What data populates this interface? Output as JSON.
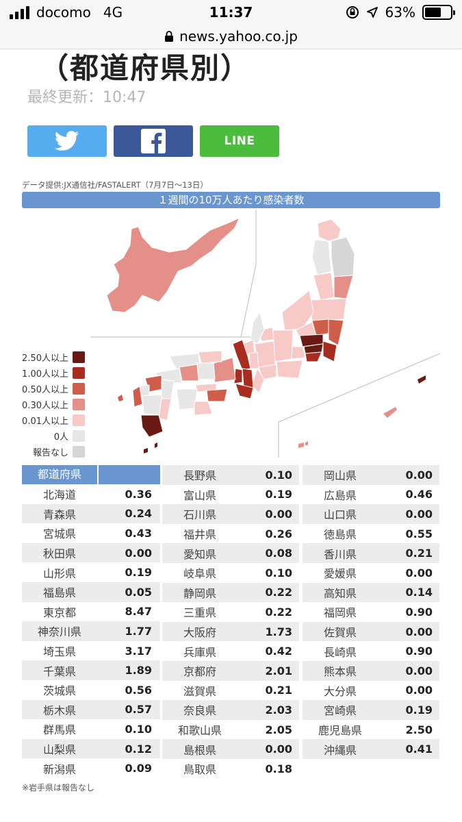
{
  "status_bar": {
    "carrier": "docomo",
    "network": "4G",
    "time": "11:37",
    "battery": "63%",
    "battery_level": 0.63
  },
  "url_bar": {
    "domain": "news.yahoo.co.jp"
  },
  "article": {
    "heading": "（都道府県別）",
    "updated": "最終更新：10:47"
  },
  "share": {
    "twitter_icon": "twitter-bird-icon",
    "facebook_icon": "facebook-f-icon",
    "line_label": "LINE"
  },
  "map": {
    "source": "データ提供:JX通信社/FASTALERT（7月7日〜13日）",
    "title": "１週間の10万人あたり感染者数",
    "legend": [
      {
        "label": "2.50人以上",
        "color": "#6b1a13"
      },
      {
        "label": "1.00人以上",
        "color": "#a82d20"
      },
      {
        "label": "0.50人以上",
        "color": "#cf5d4a"
      },
      {
        "label": "0.30人以上",
        "color": "#e58f89"
      },
      {
        "label": "0.01人以上",
        "color": "#f7cac7"
      },
      {
        "label": "0人",
        "color": "#e7e7e7"
      },
      {
        "label": "報告なし",
        "color": "#d6d6d6"
      }
    ]
  },
  "table": {
    "header": "都道府県",
    "col1": [
      {
        "name": "北海道",
        "value": "0.36"
      },
      {
        "name": "青森県",
        "value": "0.24"
      },
      {
        "name": "宮城県",
        "value": "0.43"
      },
      {
        "name": "秋田県",
        "value": "0.00"
      },
      {
        "name": "山形県",
        "value": "0.19"
      },
      {
        "name": "福島県",
        "value": "0.05"
      },
      {
        "name": "東京都",
        "value": "8.47"
      },
      {
        "name": "神奈川県",
        "value": "1.77"
      },
      {
        "name": "埼玉県",
        "value": "3.17"
      },
      {
        "name": "千葉県",
        "value": "1.89"
      },
      {
        "name": "茨城県",
        "value": "0.56"
      },
      {
        "name": "栃木県",
        "value": "0.57"
      },
      {
        "name": "群馬県",
        "value": "0.10"
      },
      {
        "name": "山梨県",
        "value": "0.12"
      },
      {
        "name": "新潟県",
        "value": "0.09"
      }
    ],
    "col2": [
      {
        "name": "長野県",
        "value": "0.10"
      },
      {
        "name": "富山県",
        "value": "0.19"
      },
      {
        "name": "石川県",
        "value": "0.00"
      },
      {
        "name": "福井県",
        "value": "0.26"
      },
      {
        "name": "愛知県",
        "value": "0.08"
      },
      {
        "name": "岐阜県",
        "value": "0.10"
      },
      {
        "name": "静岡県",
        "value": "0.22"
      },
      {
        "name": "三重県",
        "value": "0.22"
      },
      {
        "name": "大阪府",
        "value": "1.73"
      },
      {
        "name": "兵庫県",
        "value": "0.42"
      },
      {
        "name": "京都府",
        "value": "2.01"
      },
      {
        "name": "滋賀県",
        "value": "0.21"
      },
      {
        "name": "奈良県",
        "value": "2.03"
      },
      {
        "name": "和歌山県",
        "value": "2.05"
      },
      {
        "name": "島根県",
        "value": "0.00"
      },
      {
        "name": "鳥取県",
        "value": "0.18"
      }
    ],
    "col3": [
      {
        "name": "岡山県",
        "value": "0.00"
      },
      {
        "name": "広島県",
        "value": "0.46"
      },
      {
        "name": "山口県",
        "value": "0.00"
      },
      {
        "name": "徳島県",
        "value": "0.55"
      },
      {
        "name": "香川県",
        "value": "0.21"
      },
      {
        "name": "愛媛県",
        "value": "0.00"
      },
      {
        "name": "高知県",
        "value": "0.14"
      },
      {
        "name": "福岡県",
        "value": "0.90"
      },
      {
        "name": "佐賀県",
        "value": "0.00"
      },
      {
        "name": "長崎県",
        "value": "0.90"
      },
      {
        "name": "熊本県",
        "value": "0.00"
      },
      {
        "name": "大分県",
        "value": "0.00"
      },
      {
        "name": "宮崎県",
        "value": "0.19"
      },
      {
        "name": "鹿児島県",
        "value": "2.50"
      },
      {
        "name": "沖縄県",
        "value": "0.41"
      }
    ],
    "note": "※岩手県は報告なし"
  }
}
